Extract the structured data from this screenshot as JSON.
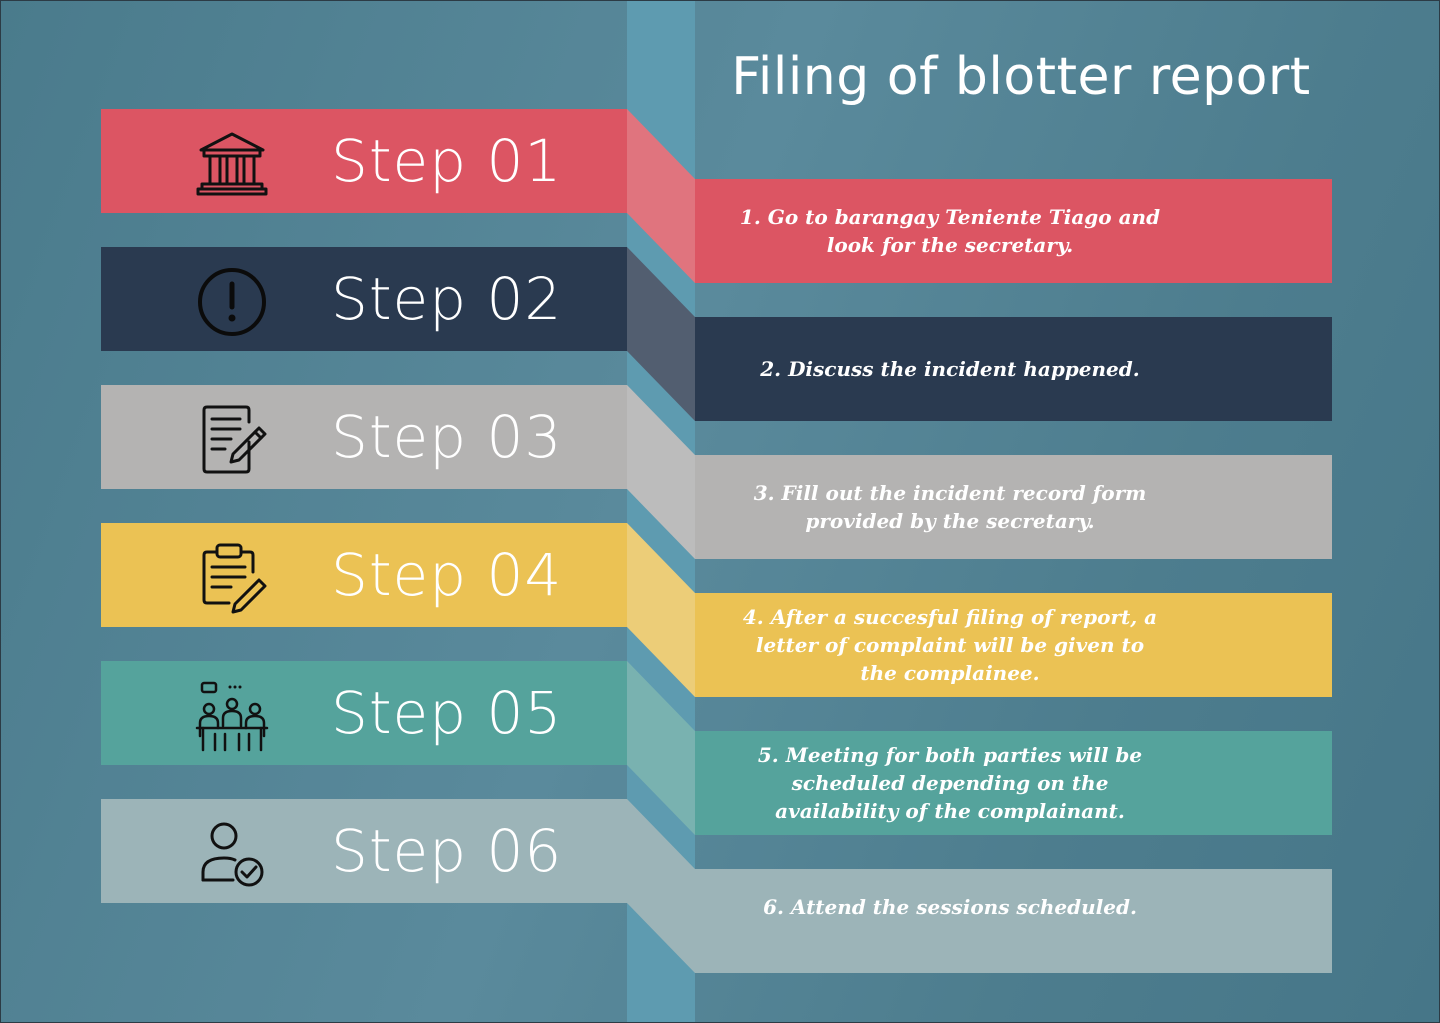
{
  "title": "Filing of blotter report",
  "steps": [
    {
      "label": "Step 01",
      "icon": "bank-building-icon",
      "color": "#dc5563",
      "fold": "#e0747e",
      "text": "1. Go to barangay Teniente Tiago and\nlook for the secretary."
    },
    {
      "label": "Step 02",
      "icon": "exclamation-circle-icon",
      "color": "#2a3a50",
      "fold": "#525e70",
      "text": "2. Discuss the incident happened."
    },
    {
      "label": "Step 03",
      "icon": "document-pen-icon",
      "color": "#b4b3b2",
      "fold": "#bcbcbc",
      "text": "3. Fill out the incident record form\nprovided by the secretary."
    },
    {
      "label": "Step 04",
      "icon": "clipboard-pen-icon",
      "color": "#ebc254",
      "fold": "#eccd78",
      "text": "4. After a succesful filing of report, a\nletter of complaint will be given to\nthe complainee."
    },
    {
      "label": "Step 05",
      "icon": "meeting-people-icon",
      "color": "#55a39c",
      "fold": "#79b2b0",
      "text": "5. Meeting for both parties will be\nscheduled depending on the\navailability of the complainant."
    },
    {
      "label": "Step 06",
      "icon": "user-check-icon",
      "color": "#9cb4b8",
      "fold": "#9cb4b8",
      "text": "6. Attend the sessions scheduled."
    }
  ]
}
